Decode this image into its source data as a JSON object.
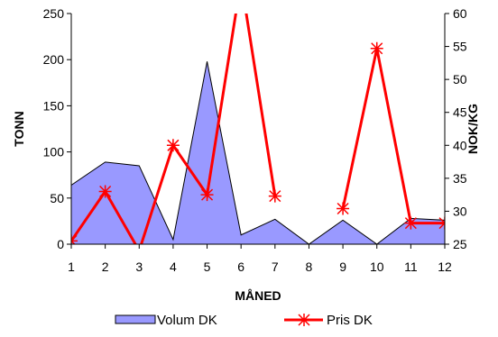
{
  "chart_data": {
    "type": "area+line",
    "x": [
      1,
      2,
      3,
      4,
      5,
      6,
      7,
      8,
      9,
      10,
      11,
      12
    ],
    "xlabel": "MÅNED",
    "ylabel_left": "TONN",
    "ylabel_right": "NOK/KG",
    "ylim_left": [
      0,
      250
    ],
    "ylim_right": [
      25,
      60
    ],
    "yticks_left": [
      0,
      50,
      100,
      150,
      200,
      250
    ],
    "yticks_right": [
      25,
      30,
      35,
      40,
      45,
      50,
      55,
      60
    ],
    "grid": false,
    "legend_placement": "bottom",
    "series": [
      {
        "name": "Volum DK",
        "type": "area",
        "axis": "left",
        "color": "#9999ff",
        "values": [
          64,
          89,
          85,
          5,
          198,
          10,
          27,
          0,
          26,
          0,
          28,
          26
        ]
      },
      {
        "name": "Pris DK",
        "type": "line",
        "axis": "right",
        "color": "#ff0000",
        "values": [
          25.5,
          33,
          24,
          40,
          32.5,
          65,
          32.3,
          null,
          30.4,
          54.7,
          28.2,
          28.2
        ]
      }
    ]
  }
}
